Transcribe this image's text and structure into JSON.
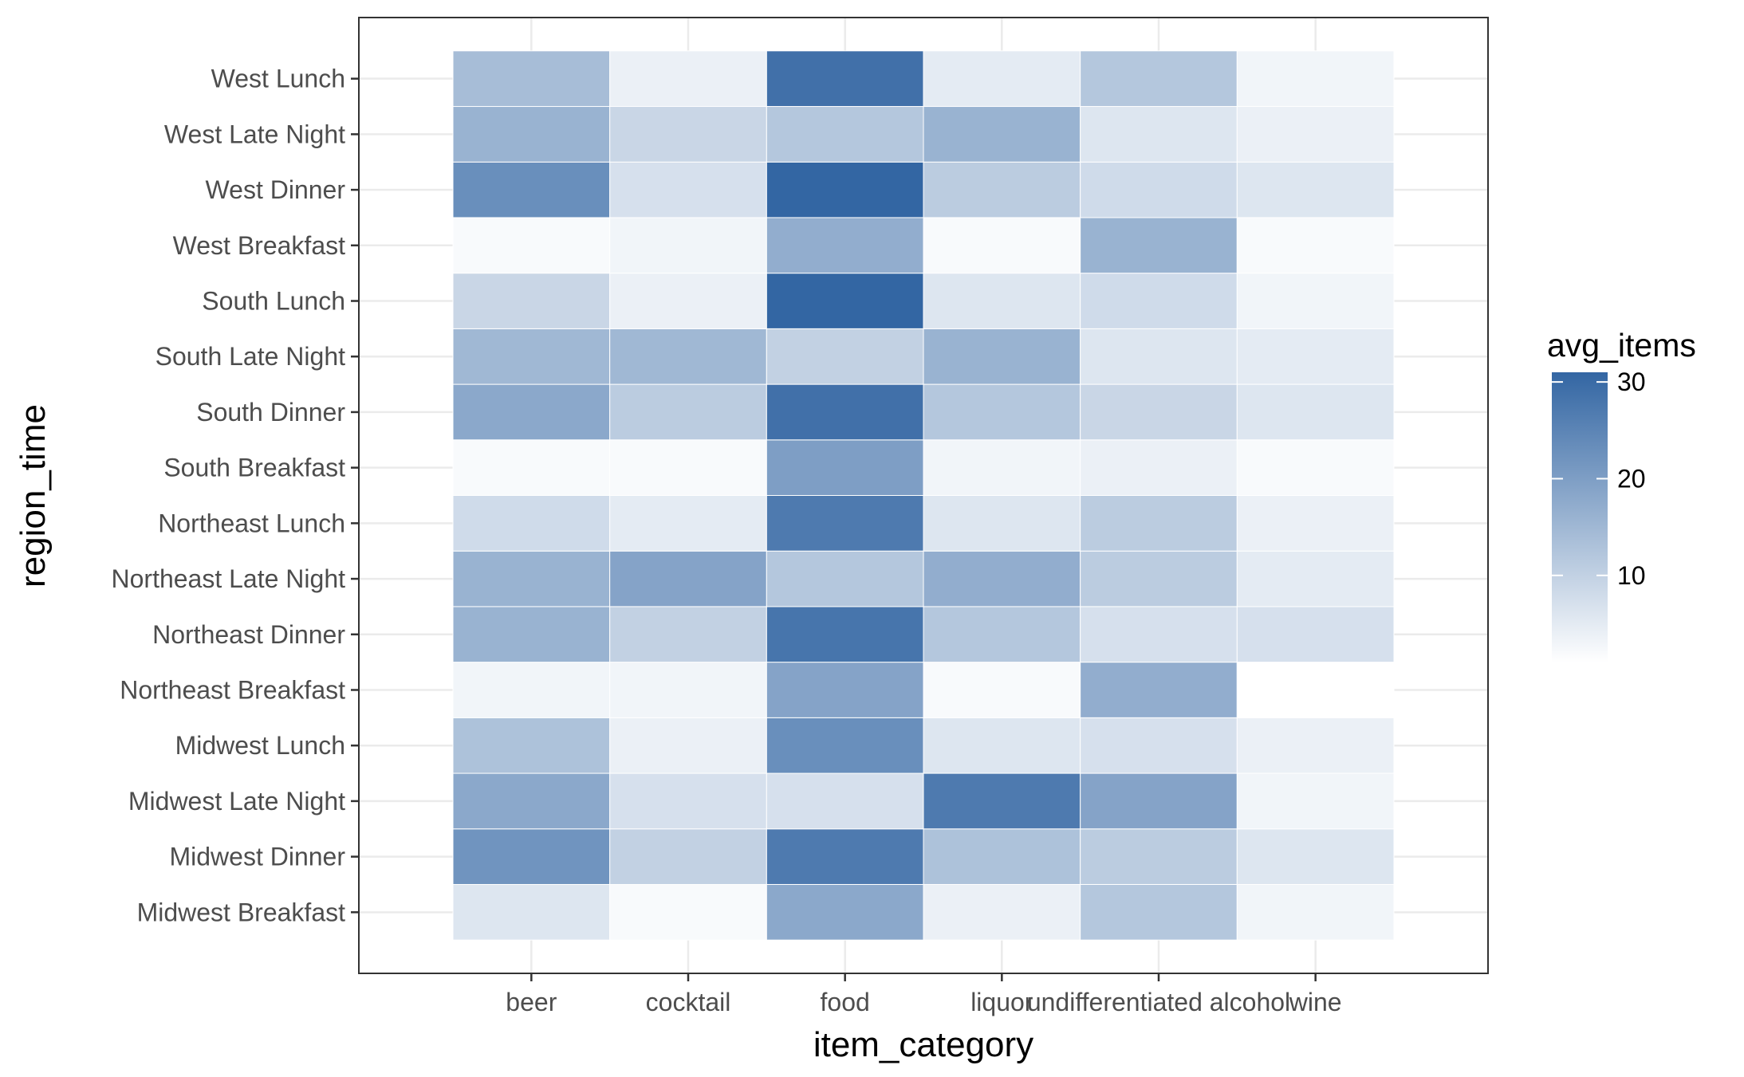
{
  "chart_data": {
    "type": "heatmap",
    "xlabel": "item_category",
    "ylabel": "region_time",
    "x_categories": [
      "beer",
      "cocktail",
      "food",
      "liquor",
      "undifferentiated alcohol",
      "wine"
    ],
    "y_categories": [
      "Midwest Breakfast",
      "Midwest Dinner",
      "Midwest Late Night",
      "Midwest Lunch",
      "Northeast Breakfast",
      "Northeast Dinner",
      "Northeast Late Night",
      "Northeast Lunch",
      "South Breakfast",
      "South Dinner",
      "South Late Night",
      "South Lunch",
      "West Breakfast",
      "West Dinner",
      "West Late Night",
      "West Lunch"
    ],
    "values": [
      [
        6,
        2,
        18,
        4,
        12,
        3
      ],
      [
        22,
        10,
        27,
        13,
        11,
        6
      ],
      [
        18,
        7,
        7,
        27,
        19,
        3
      ],
      [
        13,
        4,
        23,
        6,
        7,
        4
      ],
      [
        3,
        3,
        19,
        2,
        17,
        1
      ],
      [
        16,
        10,
        28,
        12,
        7,
        7
      ],
      [
        16,
        19,
        12,
        17,
        11,
        5
      ],
      [
        8,
        5,
        27,
        6,
        11,
        4
      ],
      [
        2,
        2,
        20,
        3,
        4,
        2
      ],
      [
        18,
        11,
        29,
        12,
        9,
        6
      ],
      [
        15,
        15,
        10,
        16,
        6,
        5
      ],
      [
        9,
        4,
        31,
        6,
        8,
        3
      ],
      [
        2,
        3,
        17,
        2,
        16,
        2
      ],
      [
        23,
        7,
        31,
        11,
        8,
        6
      ],
      [
        16,
        9,
        12,
        16,
        6,
        4
      ],
      [
        14,
        4,
        29,
        5,
        12,
        3
      ]
    ],
    "legend": {
      "title": "avg_items",
      "ticks": [
        10,
        20,
        30
      ],
      "range": [
        1,
        31
      ],
      "colors": {
        "low": "#ffffff",
        "high": "#3366a3"
      }
    }
  }
}
